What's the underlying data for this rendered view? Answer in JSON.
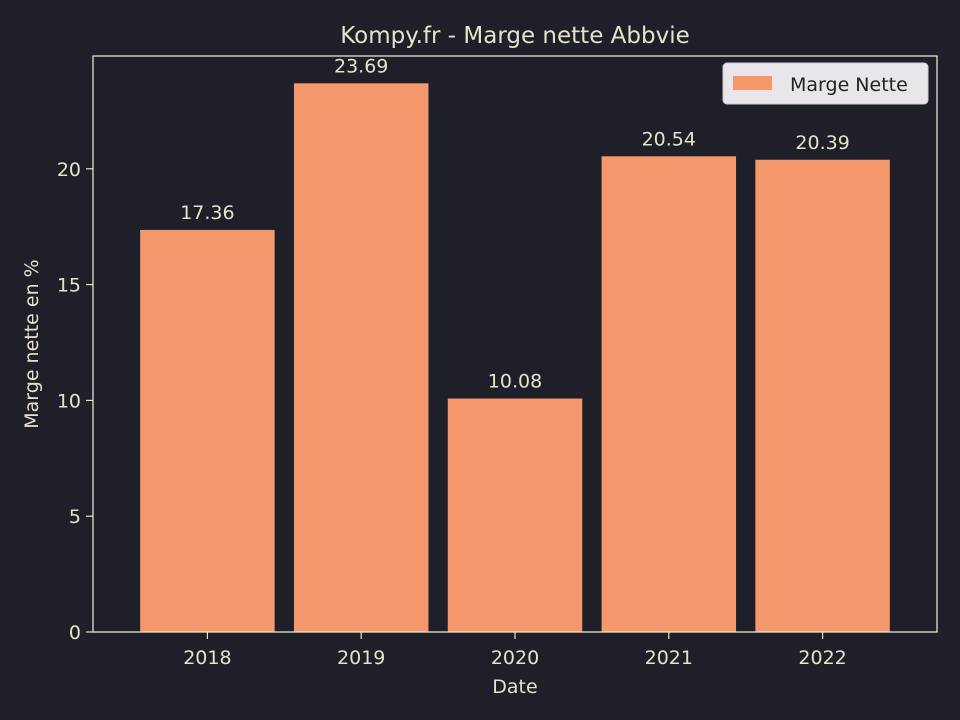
{
  "colors": {
    "background": "#1e1f29",
    "foreground": "#e6e3c8",
    "bar": "#f4976c",
    "legend_bg": "#e8e6e8"
  },
  "chart_data": {
    "type": "bar",
    "title": "Kompy.fr - Marge nette Abbvie",
    "xlabel": "Date",
    "ylabel": "Marge nette en %",
    "categories": [
      "2018",
      "2019",
      "2020",
      "2021",
      "2022"
    ],
    "series": [
      {
        "name": "Marge Nette",
        "values": [
          17.36,
          23.69,
          10.08,
          20.54,
          20.39
        ]
      }
    ],
    "data_labels": [
      "17.36",
      "23.69",
      "10.08",
      "20.54",
      "20.39"
    ],
    "yticks": [
      0,
      5,
      10,
      15,
      20
    ],
    "ylim": [
      0,
      24.87
    ],
    "grid": false,
    "legend_position": "top-right"
  }
}
